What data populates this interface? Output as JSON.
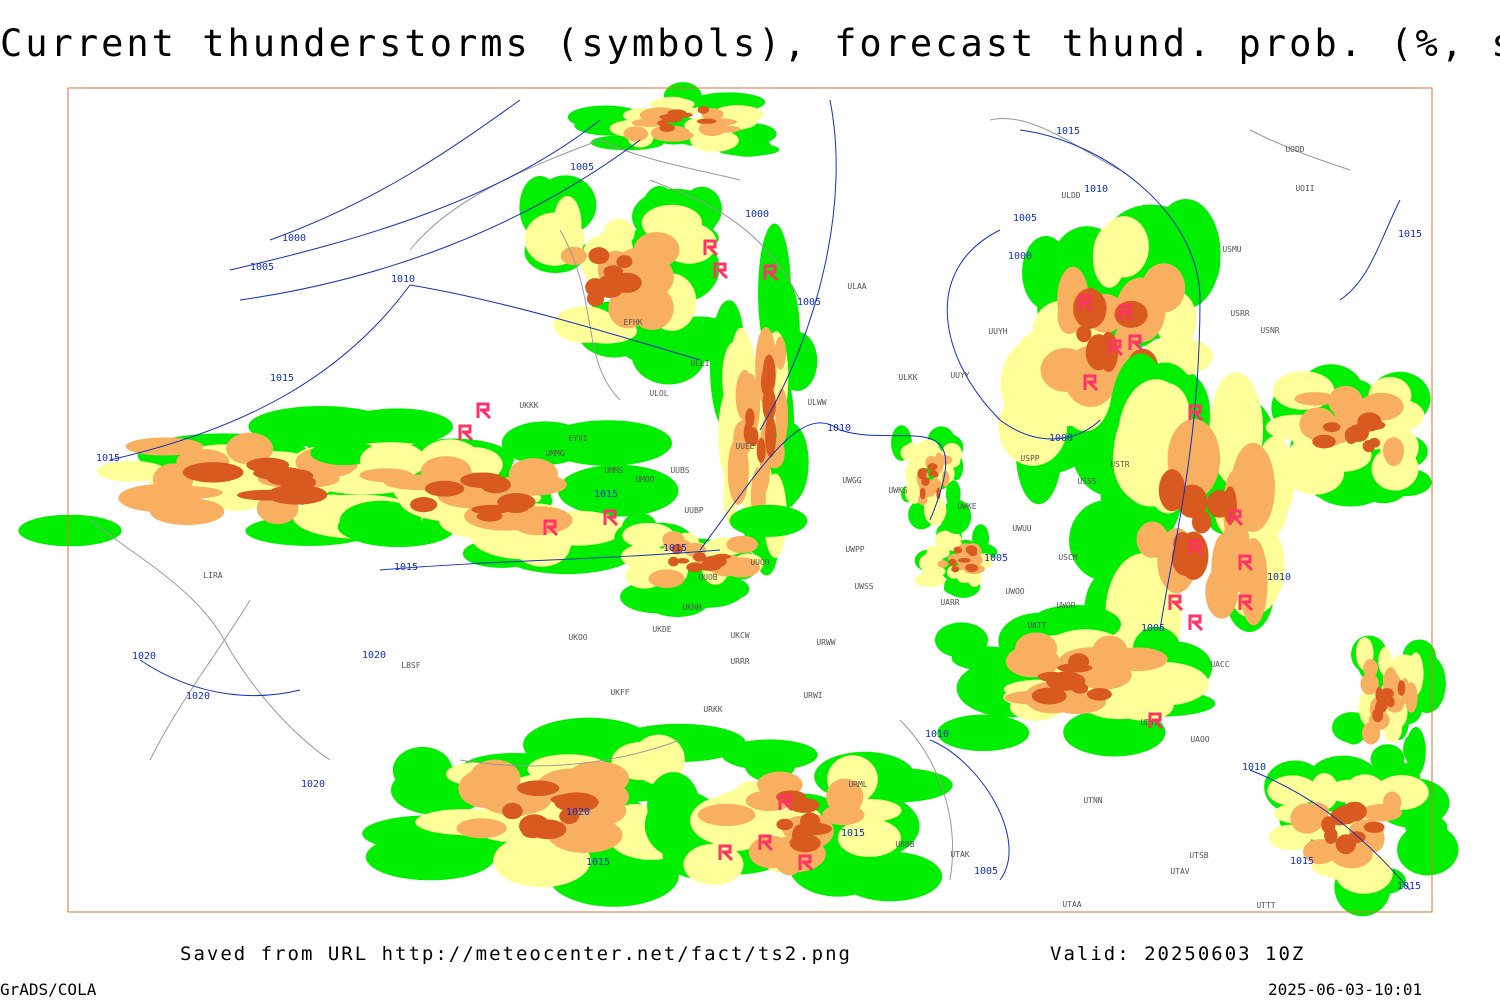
{
  "title": "Current thunderstorms (symbols), forecast thund. prob. (%, shaded)",
  "footer": {
    "source": "Saved from URL http://meteocenter.net/fact/ts2.png",
    "valid": "Valid: 20250603 10Z",
    "software": "GrADS/COLA",
    "timestamp": "2025-06-03-10:01"
  },
  "isobars": [
    "1005",
    "1000",
    "1005",
    "1010",
    "1015",
    "1015",
    "1015",
    "1015",
    "1015",
    "1020",
    "1020",
    "1020",
    "1020",
    "1020",
    "1015",
    "1015",
    "1010",
    "1005",
    "1005",
    "1005",
    "1000",
    "1015",
    "1010",
    "1005",
    "1000",
    "1000",
    "1010",
    "1005",
    "1010",
    "1010",
    "1015",
    "1015",
    "1015"
  ],
  "stations": [
    "ULAA",
    "EFHK",
    "ULLI",
    "ULOL",
    "UKKK",
    "EYVI",
    "UMMG",
    "UMMS",
    "UMOO",
    "UUBS",
    "UUBP",
    "UUEE",
    "ULWW",
    "ULKK",
    "UUYY",
    "UUYH",
    "UWGG",
    "UWKS",
    "UWKE",
    "UWPP",
    "UWSS",
    "UUOO",
    "UUOB",
    "UKHH",
    "UKDE",
    "UKOO",
    "UKCW",
    "URRR",
    "URWW",
    "URWI",
    "UKFF",
    "URKK",
    "USPP",
    "USSS",
    "USCM",
    "UWUU",
    "UWOO",
    "UWOR",
    "UATT",
    "UARR",
    "USTR",
    "UACC",
    "UAOO",
    "UTNN",
    "UTSB",
    "UTAV",
    "UTAK",
    "UTAA",
    "UBBB",
    "URML",
    "USRR",
    "USNR",
    "ULDD",
    "UODD",
    "UOII",
    "USMU",
    "LIRA",
    "LBSF",
    "UDYZ",
    "UTTT"
  ]
}
